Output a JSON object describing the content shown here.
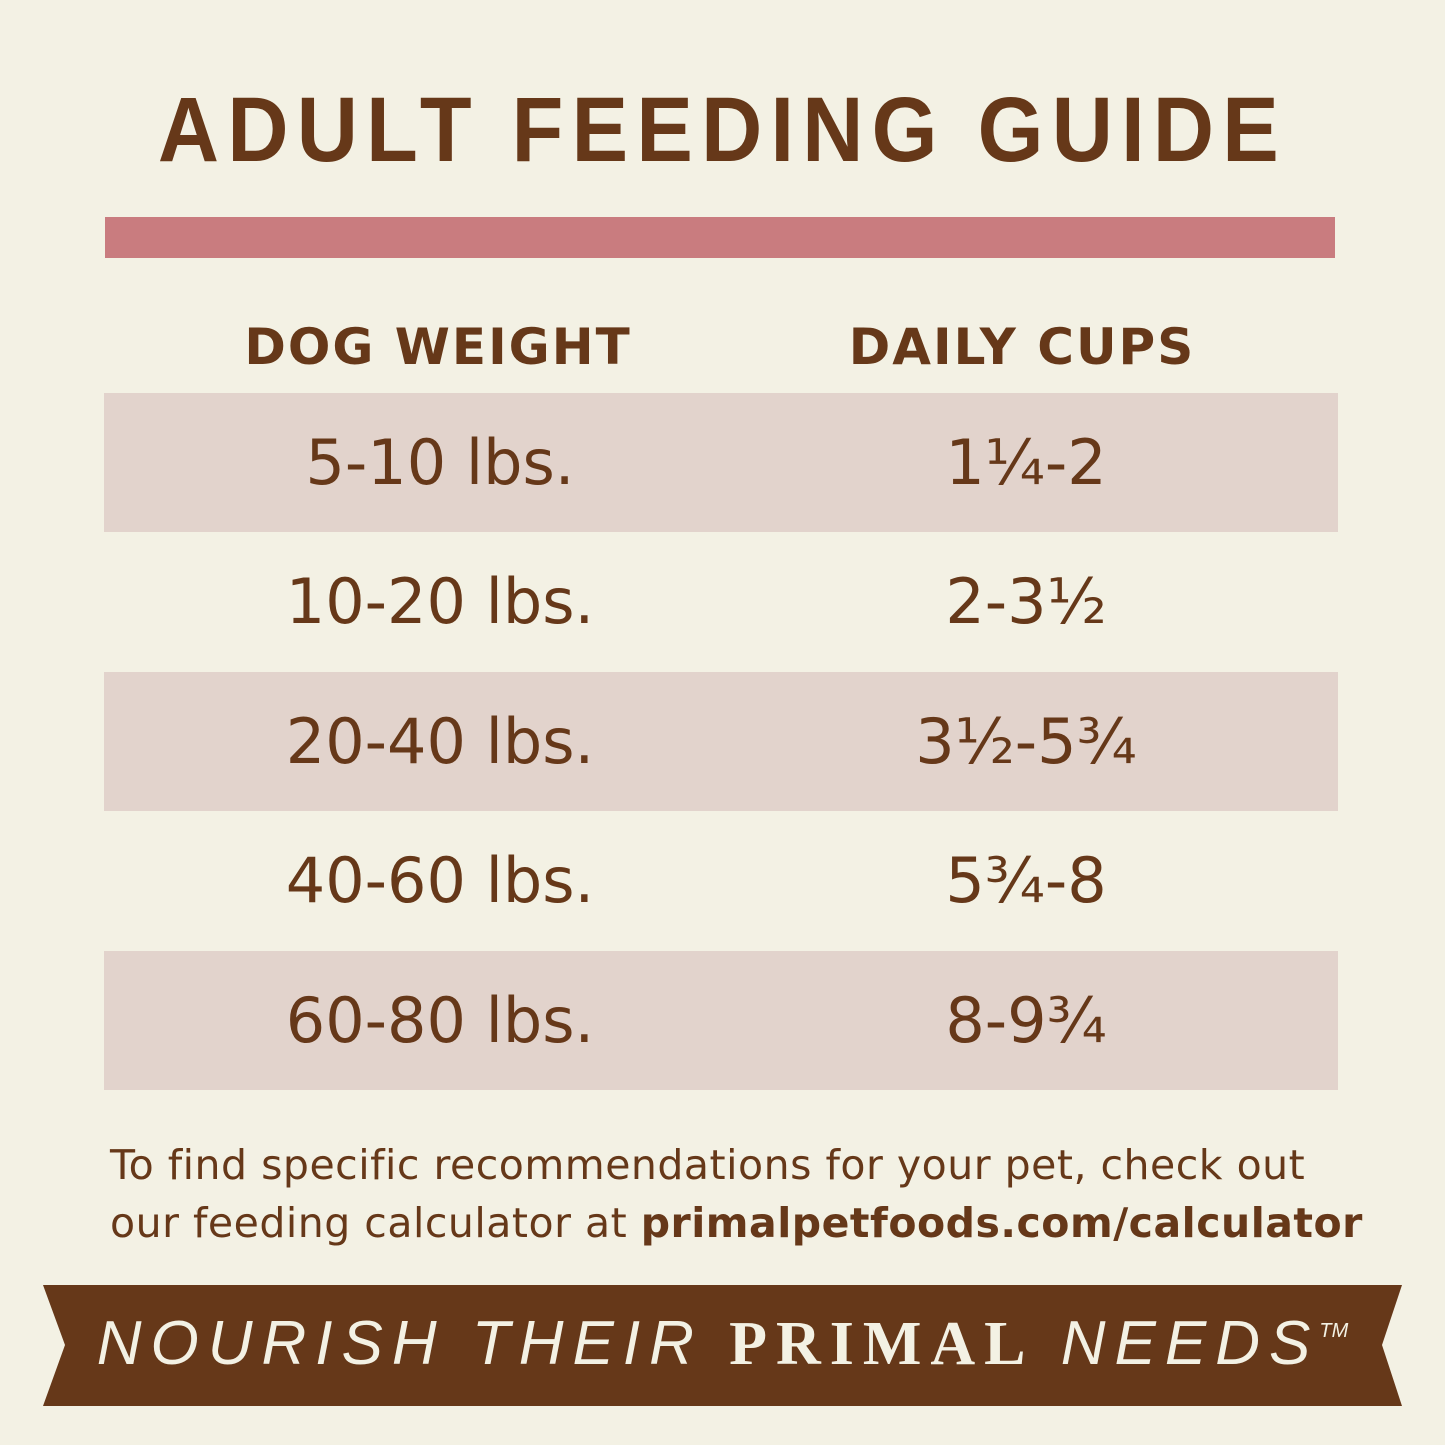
{
  "title": "ADULT FEEDING GUIDE",
  "colors": {
    "background": "#f3f1e4",
    "text": "#663819",
    "accent_bar": "#c97c7f",
    "row_shade": "#e2d3cc",
    "banner": "#663819"
  },
  "table": {
    "headers": [
      "DOG WEIGHT",
      "DAILY CUPS"
    ],
    "rows": [
      {
        "weight": "5-10 lbs.",
        "cups": "1¼-2"
      },
      {
        "weight": "10-20 lbs.",
        "cups": "2-3½"
      },
      {
        "weight": "20-40 lbs.",
        "cups": "3½-5¾"
      },
      {
        "weight": "40-60 lbs.",
        "cups": "5¾-8"
      },
      {
        "weight": "60-80 lbs.",
        "cups": "8-9¾"
      }
    ]
  },
  "note": {
    "line1": "To find specific recommendations for your pet, check out",
    "line2_prefix": "our feeding calculator at ",
    "link": "primalpetfoods.com/calculator"
  },
  "banner": {
    "part1": "NOURISH THEIR ",
    "part2": "PRIMAL",
    "part3": " NEEDS",
    "trademark": "TM"
  }
}
